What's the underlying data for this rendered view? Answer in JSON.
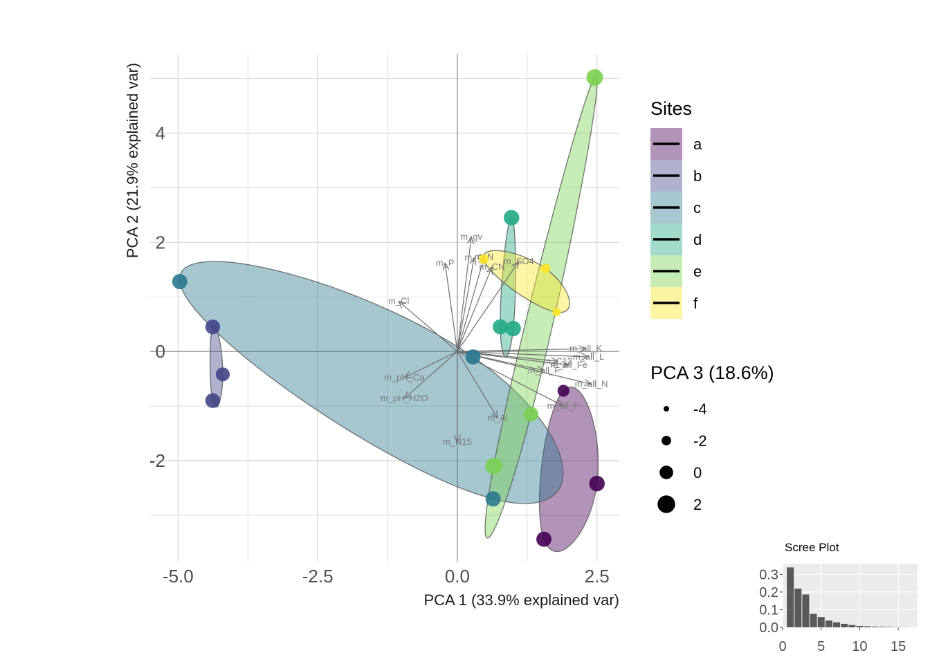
{
  "chart_data": [
    {
      "type": "scatter",
      "subtype": "pca-biplot",
      "xlabel": "PCA 1 (33.9% explained var)",
      "ylabel": "PCA 2 (21.9% explained var)",
      "xlim": [
        -5.5,
        2.9
      ],
      "ylim": [
        -3.85,
        5.45
      ],
      "x_ticks": [
        -5.0,
        -2.5,
        0.0,
        2.5
      ],
      "x_tick_labels": [
        "-5.0",
        "-2.5",
        "0.0",
        "2.5"
      ],
      "y_ticks": [
        -2,
        0,
        2,
        4
      ],
      "y_tick_labels": [
        "-2",
        "0",
        "2",
        "4"
      ],
      "grid": true,
      "reference_lines": {
        "x": 0,
        "y": 0
      },
      "legend_placement": "right",
      "sites_legend": {
        "title": "Sites",
        "entries": [
          {
            "label": "a",
            "color": "#440154"
          },
          {
            "label": "b",
            "color": "#414487"
          },
          {
            "label": "c",
            "color": "#2a788e"
          },
          {
            "label": "d",
            "color": "#22a884"
          },
          {
            "label": "e",
            "color": "#7ad151"
          },
          {
            "label": "f",
            "color": "#fde725"
          }
        ]
      },
      "size_legend": {
        "title": "PCA 3 (18.6%)",
        "entries": [
          {
            "label": "-4",
            "value": -4
          },
          {
            "label": "-2",
            "value": -2
          },
          {
            "label": "0",
            "value": 0
          },
          {
            "label": "2",
            "value": 2
          }
        ]
      },
      "points": [
        {
          "site": "a",
          "x": 1.9,
          "y": -0.72,
          "pc3": -0.8
        },
        {
          "site": "a",
          "x": 2.5,
          "y": -2.42,
          "pc3": 1.0
        },
        {
          "site": "a",
          "x": 1.55,
          "y": -3.44,
          "pc3": 0.8
        },
        {
          "site": "b",
          "x": -4.38,
          "y": 0.45,
          "pc3": 0.6
        },
        {
          "site": "b",
          "x": -4.2,
          "y": -0.42,
          "pc3": 0.2
        },
        {
          "site": "b",
          "x": -4.38,
          "y": -0.9,
          "pc3": 0.6
        },
        {
          "site": "c",
          "x": -4.97,
          "y": 1.28,
          "pc3": 0.8
        },
        {
          "site": "c",
          "x": 0.28,
          "y": -0.1,
          "pc3": 0.8
        },
        {
          "site": "c",
          "x": 0.64,
          "y": -2.7,
          "pc3": 0.8
        },
        {
          "site": "d",
          "x": 0.97,
          "y": 2.45,
          "pc3": 1.0
        },
        {
          "site": "d",
          "x": 0.77,
          "y": 0.45,
          "pc3": 0.8
        },
        {
          "site": "d",
          "x": 1.0,
          "y": 0.42,
          "pc3": 1.0
        },
        {
          "site": "e",
          "x": 2.46,
          "y": 5.02,
          "pc3": 1.5
        },
        {
          "site": "e",
          "x": 0.65,
          "y": -2.1,
          "pc3": 1.5
        },
        {
          "site": "e",
          "x": 1.32,
          "y": -1.15,
          "pc3": 0.5
        },
        {
          "site": "f",
          "x": 0.47,
          "y": 1.69,
          "pc3": -2.0
        },
        {
          "site": "f",
          "x": 1.58,
          "y": 1.52,
          "pc3": -2.0
        },
        {
          "site": "f",
          "x": 1.78,
          "y": 0.72,
          "pc3": -2.6
        }
      ],
      "loadings": [
        {
          "label": "m_gv",
          "x": 0.25,
          "y": 2.1
        },
        {
          "label": "m_P",
          "x": -0.22,
          "y": 1.62
        },
        {
          "label": "m_C",
          "x": 0.3,
          "y": 1.72
        },
        {
          "label": "m_N",
          "x": 0.48,
          "y": 1.73
        },
        {
          "label": "m_CN",
          "x": 0.62,
          "y": 1.55
        },
        {
          "label": "m_SO4",
          "x": 1.1,
          "y": 1.65
        },
        {
          "label": "m_Cl",
          "x": -1.05,
          "y": 0.92
        },
        {
          "label": "m_pH_Ca",
          "x": -0.95,
          "y": -0.48
        },
        {
          "label": "m_pH_H2O",
          "x": -0.95,
          "y": -0.86
        },
        {
          "label": "m_Al",
          "x": 0.72,
          "y": -1.22
        },
        {
          "label": "m_N15",
          "x": 0.0,
          "y": -1.66
        },
        {
          "label": "m_all_P",
          "x": 1.9,
          "y": -1.0
        },
        {
          "label": "m_all_N",
          "x": 2.4,
          "y": -0.6
        },
        {
          "label": "m_all_K",
          "x": 2.3,
          "y": 0.05
        },
        {
          "label": "m_all_L",
          "x": 2.35,
          "y": -0.1
        },
        {
          "label": "m_all_Fe",
          "x": 2.0,
          "y": -0.25
        },
        {
          "label": "m_C13",
          "x": 1.8,
          "y": -0.18
        },
        {
          "label": "m_all_F",
          "x": 1.55,
          "y": -0.35
        }
      ]
    },
    {
      "type": "bar",
      "title": "Scree Plot",
      "xlim": [
        0,
        17.5
      ],
      "ylim": [
        0,
        0.36
      ],
      "x_ticks": [
        0,
        5,
        10,
        15
      ],
      "x_tick_labels": [
        "0",
        "5",
        "10",
        "15"
      ],
      "y_ticks": [
        0.0,
        0.1,
        0.2,
        0.3
      ],
      "y_tick_labels": [
        "0.0",
        "0.1",
        "0.2",
        "0.3"
      ],
      "categories": [
        1,
        2,
        3,
        4,
        5,
        6,
        7,
        8,
        9,
        10,
        11,
        12,
        13,
        14,
        15,
        16
      ],
      "values": [
        0.339,
        0.219,
        0.186,
        0.076,
        0.058,
        0.038,
        0.028,
        0.02,
        0.013,
        0.008,
        0.006,
        0.004,
        0.003,
        0.002,
        0.001,
        0.001
      ]
    }
  ]
}
